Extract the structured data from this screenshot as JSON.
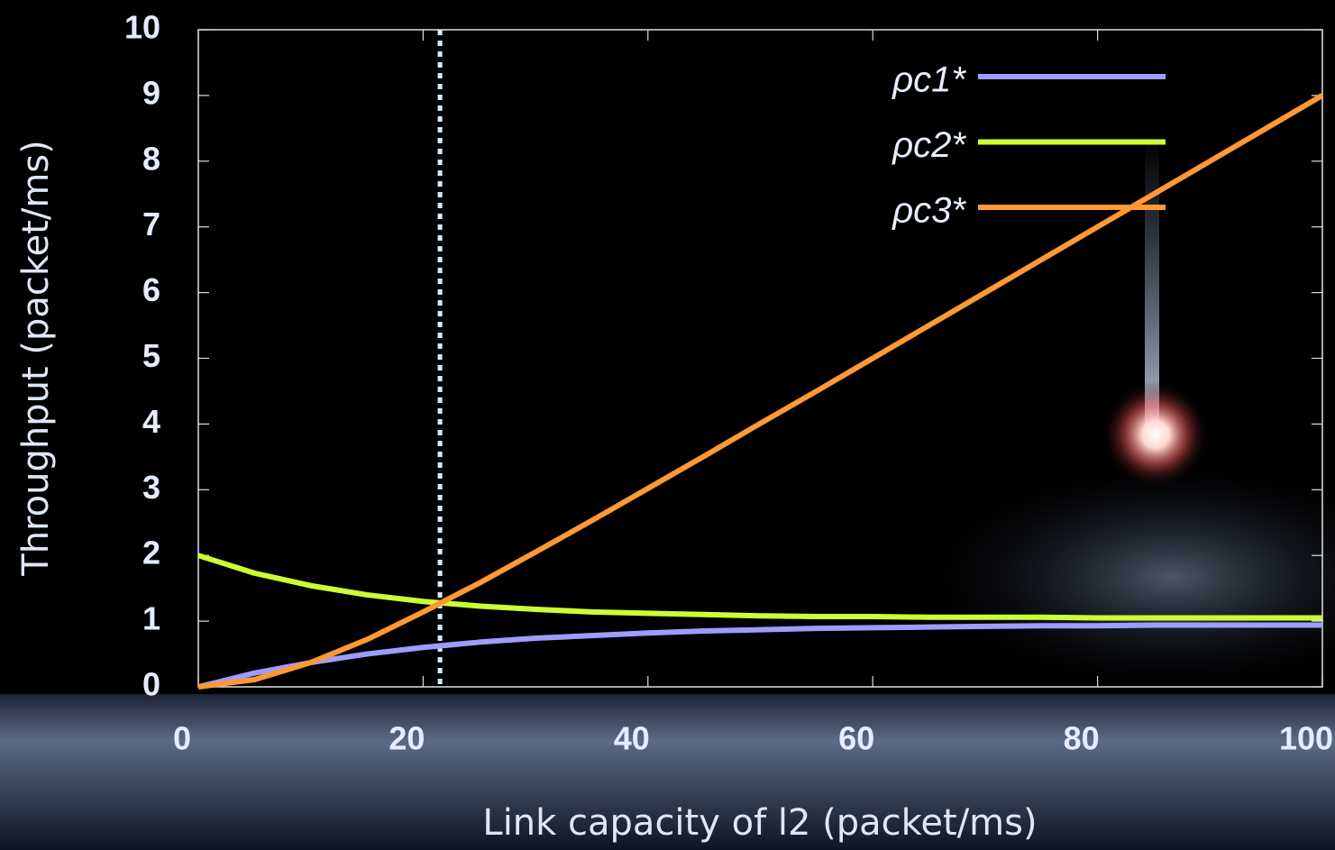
{
  "chart_data": {
    "type": "line",
    "xlabel": "Link capacity of l2 (packet/ms)",
    "ylabel": "Throughput (packet/ms)",
    "x": [
      0,
      5,
      10,
      15,
      20,
      25,
      30,
      35,
      40,
      45,
      50,
      55,
      60,
      65,
      70,
      75,
      80,
      85,
      90,
      95,
      100
    ],
    "series": [
      {
        "name": "ρc1*",
        "color": "#9f9cff",
        "values": [
          0,
          0.21,
          0.37,
          0.5,
          0.6,
          0.68,
          0.74,
          0.78,
          0.82,
          0.85,
          0.87,
          0.89,
          0.9,
          0.91,
          0.92,
          0.93,
          0.93,
          0.94,
          0.94,
          0.94,
          0.94
        ]
      },
      {
        "name": "ρc2*",
        "color": "#ccff33",
        "values": [
          2.0,
          1.73,
          1.54,
          1.4,
          1.3,
          1.23,
          1.18,
          1.14,
          1.12,
          1.1,
          1.08,
          1.07,
          1.07,
          1.06,
          1.06,
          1.06,
          1.05,
          1.05,
          1.05,
          1.05,
          1.05
        ]
      },
      {
        "name": "ρc3*",
        "color": "#ff9933",
        "values": [
          0,
          0.11,
          0.37,
          0.72,
          1.14,
          1.58,
          2.05,
          2.53,
          3.02,
          3.51,
          4.01,
          4.5,
          5.0,
          5.5,
          6.0,
          6.5,
          7.0,
          7.5,
          8.0,
          8.5,
          9.0
        ]
      }
    ],
    "vline": 21.5,
    "xlim": [
      0,
      100
    ],
    "xticks": [
      0,
      20,
      40,
      60,
      80,
      100
    ],
    "ylim": [
      0,
      10
    ],
    "yticks": [
      0,
      1,
      2,
      3,
      4,
      5,
      6,
      7,
      8,
      9,
      10
    ],
    "grid": false,
    "legend": "top-right"
  }
}
